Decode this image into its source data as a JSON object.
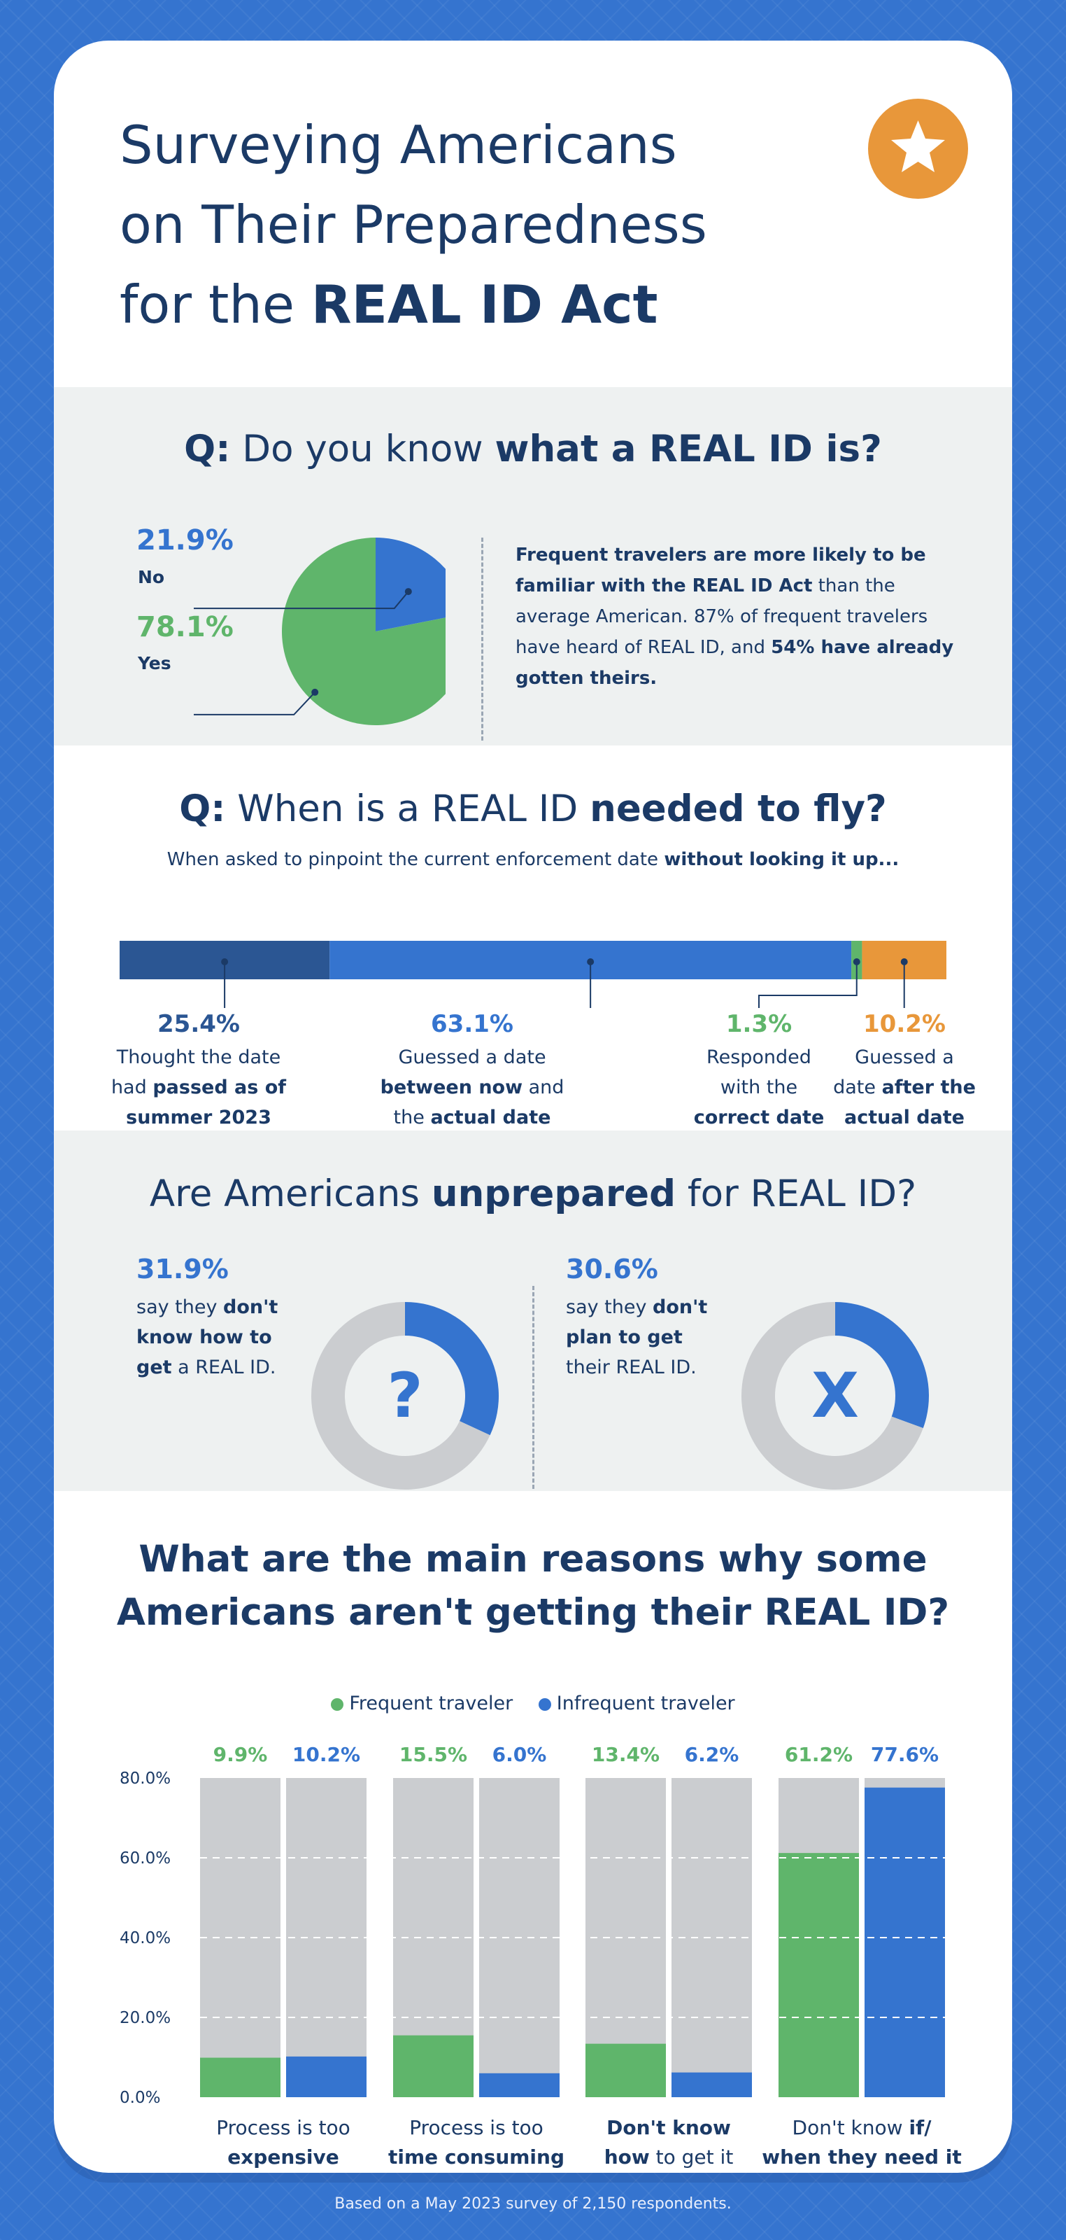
{
  "colors": {
    "navy": "#1b3a66",
    "blue": "#3574cf",
    "dark_blue": "#2b5693",
    "green": "#5fb56b",
    "orange": "#e8973a",
    "gray_bar": "#cbcdd0"
  },
  "header": {
    "title_line1": "Surveying Americans",
    "title_line2": "on Their Preparedness",
    "title_line3_prefix": "for the ",
    "title_line3_bold": "REAL ID Act",
    "badge_icon": "star-icon"
  },
  "q1": {
    "title_prefix": "Q:",
    "title_regular": " Do you know ",
    "title_bold": "what a REAL ID is?",
    "no_pct": "21.9%",
    "no_label": "No",
    "yes_pct": "78.1%",
    "yes_label": "Yes",
    "para_bold1": "Frequent travelers are more likely to be familiar with the REAL ID Act",
    "para_regular": " than the average American. 87% of frequent travelers have heard of REAL ID, and ",
    "para_bold2": "54% have already gotten theirs."
  },
  "q2": {
    "title_prefix": "Q:",
    "title_regular": " When is a REAL ID ",
    "title_bold": "needed to fly?",
    "sub_regular": "When asked to pinpoint the current enforcement date ",
    "sub_bold": "without looking it up...",
    "segments": [
      {
        "pct": "25.4%",
        "line1": "Thought the date",
        "line2_regular": "had ",
        "line2_bold": "passed as of",
        "line3_regular": "",
        "line3_bold": "summer 2023"
      },
      {
        "pct": "63.1%",
        "line1": "Guessed a date",
        "line2_regular": "",
        "line2_bold": "between now",
        "line2_tail": " and",
        "line3_regular": "the ",
        "line3_bold": "actual date"
      },
      {
        "pct": "1.3%",
        "line1": "Responded",
        "line2_regular": "with the",
        "line2_bold": "",
        "line3_regular": "",
        "line3_bold": "correct date"
      },
      {
        "pct": "10.2%",
        "line1": "Guessed a",
        "line2_regular": "date ",
        "line2_bold": "after the",
        "line3_regular": "",
        "line3_bold": "actual date"
      }
    ]
  },
  "q3": {
    "title_regular1": "Are Americans ",
    "title_bold": "unprepared",
    "title_regular2": " for REAL ID?",
    "left": {
      "pct": "31.9%",
      "l1_regular": "say they ",
      "l1_bold": "don't",
      "l2_bold": "know how to",
      "l3_bold": "get",
      "l3_regular": " a REAL ID.",
      "icon_glyph": "?"
    },
    "right": {
      "pct": "30.6%",
      "l1_regular": "say they ",
      "l1_bold": "don't",
      "l2_bold": "plan to get",
      "l3_regular": "their REAL ID.",
      "icon_glyph": "X"
    }
  },
  "q4": {
    "title_line1": "What are the main reasons why some",
    "title_line2_regular": "Americans ",
    "title_line2_bold": "aren't getting their REAL ID?",
    "legend_frequent": "Frequent traveler",
    "legend_infrequent": "Infrequent traveler",
    "categories": [
      {
        "line1_regular": "Process is too",
        "line1_bold": "",
        "line2_regular": "",
        "line2_bold": "expensive"
      },
      {
        "line1_regular": "Process is too",
        "line1_bold": "",
        "line2_regular": "",
        "line2_bold": "time consuming"
      },
      {
        "line1_regular": "",
        "line1_bold": "Don't know",
        "line2_regular": " to get it",
        "line2_bold": "how"
      },
      {
        "line1_regular": "Don't know ",
        "line1_bold": "if/",
        "line2_regular": "",
        "line2_bold": "when they need it"
      }
    ],
    "value_labels": [
      "9.9%",
      "10.2%",
      "15.5%",
      "6.0%",
      "13.4%",
      "6.2%",
      "61.2%",
      "77.6%"
    ]
  },
  "chart_data": [
    {
      "type": "pie",
      "title": "Q: Do you know what a REAL ID is?",
      "labels": [
        "No",
        "Yes"
      ],
      "values": [
        21.9,
        78.1
      ],
      "colors": [
        "#3574cf",
        "#5fb56b"
      ]
    },
    {
      "type": "bar",
      "orientation": "horizontal-stacked",
      "title": "Q: When is a REAL ID needed to fly?",
      "categories": [
        "Thought the date had passed as of summer 2023",
        "Guessed a date between now and the actual date",
        "Responded with the correct date",
        "Guessed a date after the actual date"
      ],
      "values": [
        25.4,
        63.1,
        1.3,
        10.2
      ],
      "colors": [
        "#2b5693",
        "#3574cf",
        "#5fb56b",
        "#e8973a"
      ]
    },
    {
      "type": "pie",
      "subtype": "donut",
      "title": "Are Americans unprepared for REAL ID?",
      "labels": [
        "don't know how to get a REAL ID"
      ],
      "values": [
        31.9
      ]
    },
    {
      "type": "pie",
      "subtype": "donut",
      "labels": [
        "don't plan to get their REAL ID"
      ],
      "values": [
        30.6
      ]
    },
    {
      "type": "bar",
      "title": "What are the main reasons why some Americans aren't getting their REAL ID?",
      "categories": [
        "Process is too expensive",
        "Process is too time consuming",
        "Don't know how to get it",
        "Don't know if/ when they need it"
      ],
      "series": [
        {
          "name": "Frequent traveler",
          "values": [
            9.9,
            15.5,
            13.4,
            61.2
          ],
          "color": "#5fb56b"
        },
        {
          "name": "Infrequent traveler",
          "values": [
            10.2,
            6.0,
            6.2,
            77.6
          ],
          "color": "#3574cf"
        }
      ],
      "ylim": [
        0,
        80
      ],
      "yticks": [
        "0.0%",
        "20.0%",
        "40.0%",
        "60.0%",
        "80.0%"
      ],
      "grid": "dashed-horizontal"
    }
  ],
  "footer": {
    "text": "Based on a May 2023 survey of 2,150 respondents."
  }
}
